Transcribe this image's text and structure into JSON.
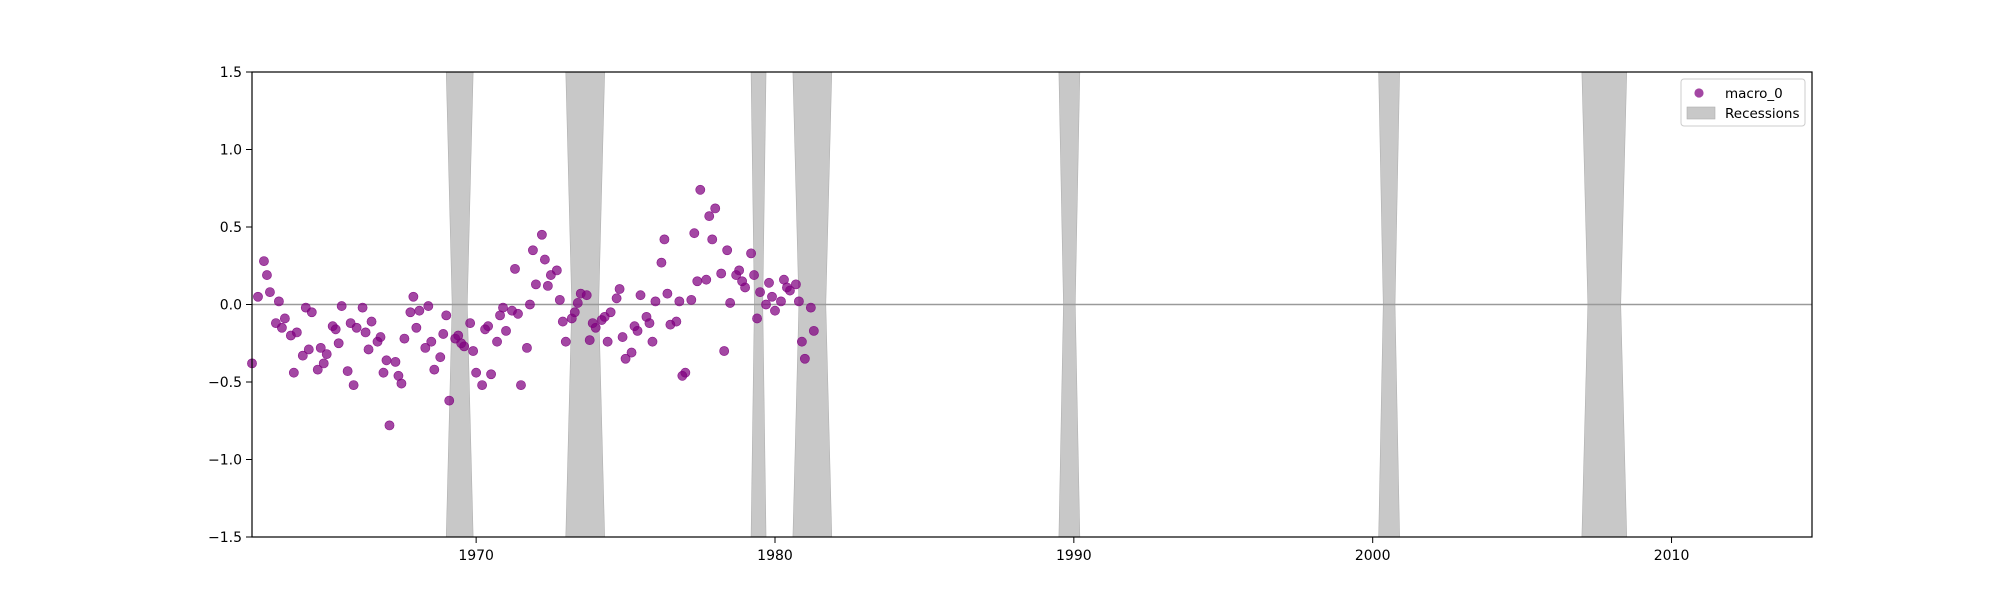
{
  "chart_data": {
    "type": "scatter",
    "title": "",
    "xlabel": "",
    "ylabel": "",
    "xlim": [
      1962.5,
      2014.7
    ],
    "ylim": [
      -1.5,
      1.5
    ],
    "x_ticks": [
      1970,
      1980,
      1990,
      2000,
      2010
    ],
    "x_tick_labels": [
      "1970",
      "1980",
      "1990",
      "2000",
      "2010"
    ],
    "y_ticks": [
      -1.5,
      -1.0,
      -0.5,
      0.0,
      0.5,
      1.0,
      1.5
    ],
    "y_tick_labels": [
      "−1.5",
      "−1.0",
      "−0.5",
      "0.0",
      "0.5",
      "1.0",
      "1.5"
    ],
    "grid": false,
    "zero_line": 0,
    "legend": {
      "position": "top-right",
      "entries": [
        {
          "label": "macro_0",
          "color": "#800080",
          "marker": "circle"
        },
        {
          "label": "Recessions",
          "color": "#c8c8c8",
          "marker": "patch"
        }
      ]
    },
    "recessions": [
      {
        "start": 1969.0,
        "end": 1969.9
      },
      {
        "start": 1973.0,
        "end": 1974.3
      },
      {
        "start": 1979.2,
        "end": 1979.7
      },
      {
        "start": 1980.6,
        "end": 1981.9
      },
      {
        "start": 1989.5,
        "end": 1990.2
      },
      {
        "start": 2000.2,
        "end": 2000.9
      },
      {
        "start": 2007.0,
        "end": 2008.5
      }
    ],
    "series": [
      {
        "name": "macro_0",
        "color": "#800080",
        "points": [
          [
            1962.5,
            -0.38
          ],
          [
            1962.7,
            0.05
          ],
          [
            1962.9,
            0.28
          ],
          [
            1963.0,
            0.19
          ],
          [
            1963.1,
            0.08
          ],
          [
            1963.3,
            -0.12
          ],
          [
            1963.4,
            0.02
          ],
          [
            1963.5,
            -0.15
          ],
          [
            1963.6,
            -0.09
          ],
          [
            1963.8,
            -0.2
          ],
          [
            1963.9,
            -0.44
          ],
          [
            1964.0,
            -0.18
          ],
          [
            1964.2,
            -0.33
          ],
          [
            1964.3,
            -0.02
          ],
          [
            1964.4,
            -0.29
          ],
          [
            1964.5,
            -0.05
          ],
          [
            1964.7,
            -0.42
          ],
          [
            1964.8,
            -0.28
          ],
          [
            1964.9,
            -0.38
          ],
          [
            1965.0,
            -0.32
          ],
          [
            1965.2,
            -0.14
          ],
          [
            1965.3,
            -0.16
          ],
          [
            1965.4,
            -0.25
          ],
          [
            1965.5,
            -0.01
          ],
          [
            1965.7,
            -0.43
          ],
          [
            1965.8,
            -0.12
          ],
          [
            1965.9,
            -0.52
          ],
          [
            1966.0,
            -0.15
          ],
          [
            1966.2,
            -0.02
          ],
          [
            1966.3,
            -0.18
          ],
          [
            1966.4,
            -0.29
          ],
          [
            1966.5,
            -0.11
          ],
          [
            1966.7,
            -0.24
          ],
          [
            1966.8,
            -0.21
          ],
          [
            1966.9,
            -0.44
          ],
          [
            1967.0,
            -0.36
          ],
          [
            1967.1,
            -0.78
          ],
          [
            1967.3,
            -0.37
          ],
          [
            1967.4,
            -0.46
          ],
          [
            1967.5,
            -0.51
          ],
          [
            1967.6,
            -0.22
          ],
          [
            1967.8,
            -0.05
          ],
          [
            1967.9,
            0.05
          ],
          [
            1968.0,
            -0.15
          ],
          [
            1968.1,
            -0.04
          ],
          [
            1968.3,
            -0.28
          ],
          [
            1968.4,
            -0.01
          ],
          [
            1968.5,
            -0.24
          ],
          [
            1968.6,
            -0.42
          ],
          [
            1968.8,
            -0.34
          ],
          [
            1968.9,
            -0.19
          ],
          [
            1969.0,
            -0.07
          ],
          [
            1969.1,
            -0.62
          ],
          [
            1969.3,
            -0.22
          ],
          [
            1969.4,
            -0.2
          ],
          [
            1969.5,
            -0.25
          ],
          [
            1969.6,
            -0.27
          ],
          [
            1969.8,
            -0.12
          ],
          [
            1969.9,
            -0.3
          ],
          [
            1970.0,
            -0.44
          ],
          [
            1970.2,
            -0.52
          ],
          [
            1970.3,
            -0.16
          ],
          [
            1970.4,
            -0.14
          ],
          [
            1970.5,
            -0.45
          ],
          [
            1970.7,
            -0.24
          ],
          [
            1970.8,
            -0.07
          ],
          [
            1970.9,
            -0.02
          ],
          [
            1971.0,
            -0.17
          ],
          [
            1971.2,
            -0.04
          ],
          [
            1971.3,
            0.23
          ],
          [
            1971.4,
            -0.06
          ],
          [
            1971.5,
            -0.52
          ],
          [
            1971.7,
            -0.28
          ],
          [
            1971.8,
            0.0
          ],
          [
            1971.9,
            0.35
          ],
          [
            1972.0,
            0.13
          ],
          [
            1972.2,
            0.45
          ],
          [
            1972.3,
            0.29
          ],
          [
            1972.4,
            0.12
          ],
          [
            1972.5,
            0.19
          ],
          [
            1972.7,
            0.22
          ],
          [
            1972.8,
            0.03
          ],
          [
            1972.9,
            -0.11
          ],
          [
            1973.0,
            -0.24
          ],
          [
            1973.2,
            -0.09
          ],
          [
            1973.3,
            -0.05
          ],
          [
            1973.4,
            0.01
          ],
          [
            1973.5,
            0.07
          ],
          [
            1973.7,
            0.06
          ],
          [
            1973.8,
            -0.23
          ],
          [
            1973.9,
            -0.12
          ],
          [
            1974.0,
            -0.15
          ],
          [
            1974.2,
            -0.1
          ],
          [
            1974.3,
            -0.08
          ],
          [
            1974.4,
            -0.24
          ],
          [
            1974.5,
            -0.05
          ],
          [
            1974.7,
            0.04
          ],
          [
            1974.8,
            0.1
          ],
          [
            1974.9,
            -0.21
          ],
          [
            1975.0,
            -0.35
          ],
          [
            1975.2,
            -0.31
          ],
          [
            1975.3,
            -0.14
          ],
          [
            1975.4,
            -0.17
          ],
          [
            1975.5,
            0.06
          ],
          [
            1975.7,
            -0.08
          ],
          [
            1975.8,
            -0.12
          ],
          [
            1975.9,
            -0.24
          ],
          [
            1976.0,
            0.02
          ],
          [
            1976.2,
            0.27
          ],
          [
            1976.3,
            0.42
          ],
          [
            1976.4,
            0.07
          ],
          [
            1976.5,
            -0.13
          ],
          [
            1976.7,
            -0.11
          ],
          [
            1976.8,
            0.02
          ],
          [
            1976.9,
            -0.46
          ],
          [
            1977.0,
            -0.44
          ],
          [
            1977.2,
            0.03
          ],
          [
            1977.3,
            0.46
          ],
          [
            1977.4,
            0.15
          ],
          [
            1977.5,
            0.74
          ],
          [
            1977.7,
            0.16
          ],
          [
            1977.8,
            0.57
          ],
          [
            1977.9,
            0.42
          ],
          [
            1978.0,
            0.62
          ],
          [
            1978.2,
            0.2
          ],
          [
            1978.3,
            -0.3
          ],
          [
            1978.4,
            0.35
          ],
          [
            1978.5,
            0.01
          ],
          [
            1978.7,
            0.19
          ],
          [
            1978.8,
            0.22
          ],
          [
            1978.9,
            0.15
          ],
          [
            1979.0,
            0.11
          ],
          [
            1979.2,
            0.33
          ],
          [
            1979.3,
            0.19
          ],
          [
            1979.4,
            -0.09
          ],
          [
            1979.5,
            0.08
          ],
          [
            1979.7,
            0.0
          ],
          [
            1979.8,
            0.14
          ],
          [
            1979.9,
            0.05
          ],
          [
            1980.0,
            -0.04
          ],
          [
            1980.2,
            0.02
          ],
          [
            1980.3,
            0.16
          ],
          [
            1980.4,
            0.11
          ],
          [
            1980.5,
            0.09
          ],
          [
            1980.7,
            0.13
          ],
          [
            1980.8,
            0.02
          ],
          [
            1980.9,
            -0.24
          ],
          [
            1981.0,
            -0.35
          ],
          [
            1981.2,
            -0.02
          ],
          [
            1981.3,
            -0.17
          ]
        ]
      }
    ]
  }
}
